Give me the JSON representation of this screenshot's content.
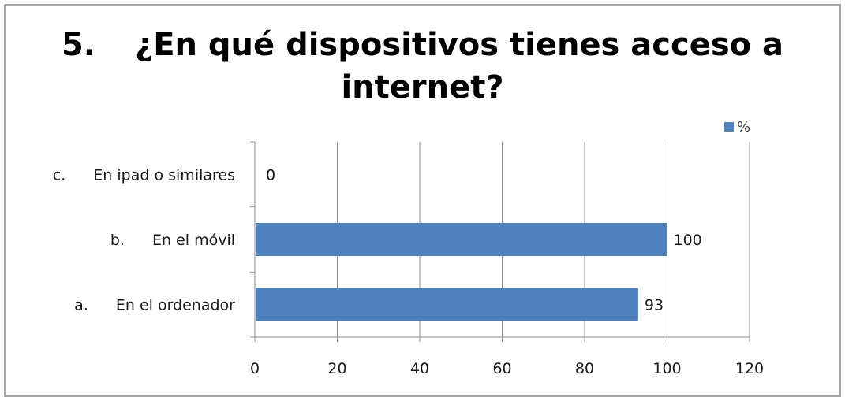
{
  "title": {
    "number": "5.",
    "line1": "¿En qué dispositivos tienes acceso a",
    "line2": "internet?"
  },
  "legend": {
    "label": "%"
  },
  "colors": {
    "bar": "#4f81bd",
    "grid": "#8c8c8c",
    "axis": "#8c8c8c"
  },
  "chart_data": {
    "type": "bar",
    "orientation": "horizontal",
    "title": "5. ¿En qué dispositivos tienes acceso a internet?",
    "xlabel": "",
    "ylabel": "",
    "xlim": [
      0,
      120
    ],
    "xticks": [
      0,
      20,
      40,
      60,
      80,
      100,
      120
    ],
    "grid": true,
    "legend_position": "top-right",
    "categories": [
      {
        "letter": "c.",
        "label": "En ipad o similares"
      },
      {
        "letter": "b.",
        "label": "En el móvil"
      },
      {
        "letter": "a.",
        "label": "En el ordenador"
      }
    ],
    "series": [
      {
        "name": "%",
        "values": [
          0,
          100,
          93
        ]
      }
    ]
  }
}
